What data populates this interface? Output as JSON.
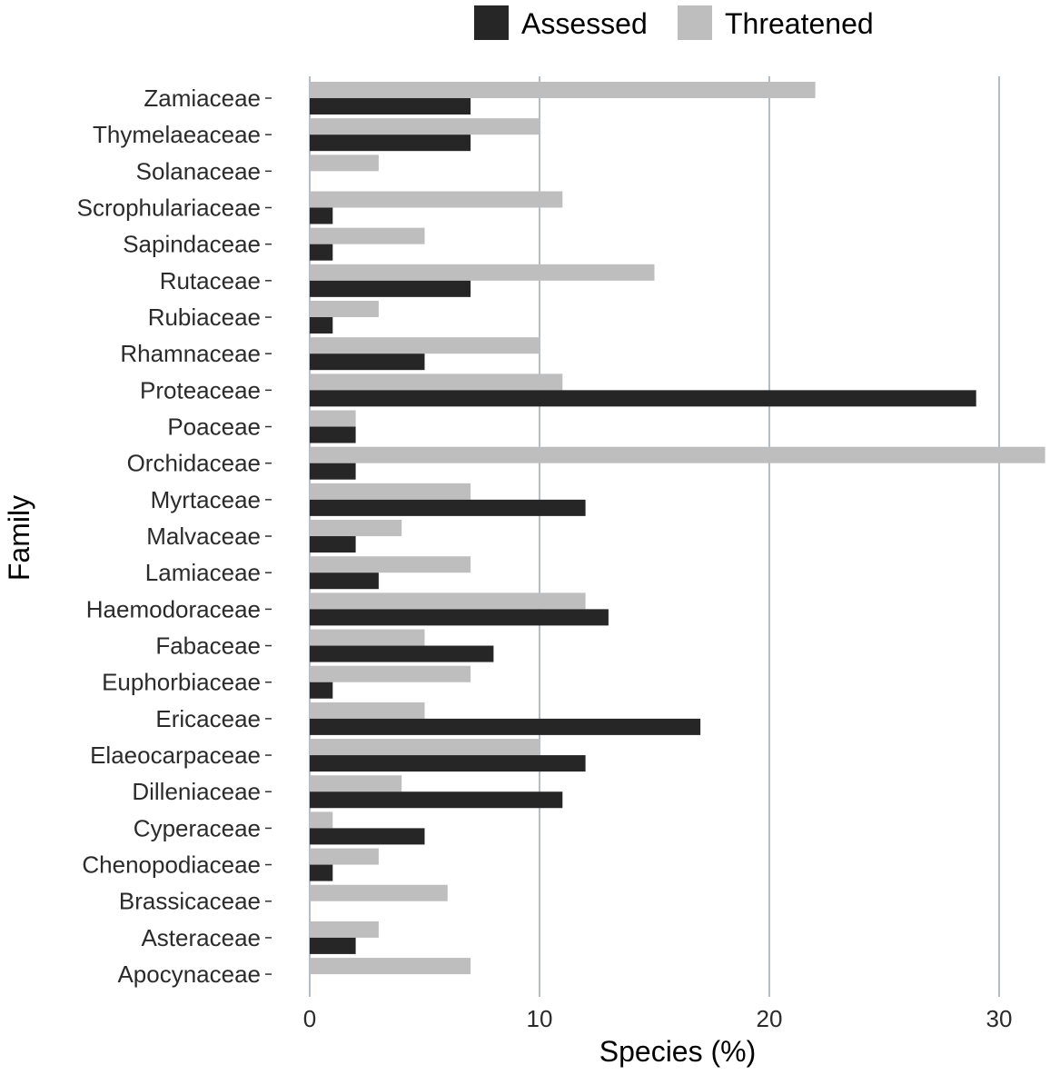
{
  "chart_data": {
    "type": "bar",
    "orientation": "horizontal",
    "xlabel": "Species (%)",
    "ylabel": "Family",
    "xlim": [
      0,
      32
    ],
    "xticks": [
      0,
      10,
      20,
      30
    ],
    "legend_position": "top",
    "categories": [
      "Zamiaceae",
      "Thymelaeaceae",
      "Solanaceae",
      "Scrophulariaceae",
      "Sapindaceae",
      "Rutaceae",
      "Rubiaceae",
      "Rhamnaceae",
      "Proteaceae",
      "Poaceae",
      "Orchidaceae",
      "Myrtaceae",
      "Malvaceae",
      "Lamiaceae",
      "Haemodoraceae",
      "Fabaceae",
      "Euphorbiaceae",
      "Ericaceae",
      "Elaeocarpaceae",
      "Dilleniaceae",
      "Cyperaceae",
      "Chenopodiaceae",
      "Brassicaceae",
      "Asteraceae",
      "Apocynaceae"
    ],
    "series": [
      {
        "name": "Assessed",
        "color": "#262626",
        "values": [
          7,
          7,
          0,
          1,
          1,
          7,
          1,
          5,
          29,
          2,
          2,
          12,
          2,
          3,
          13,
          8,
          1,
          17,
          12,
          11,
          5,
          1,
          0,
          2,
          0
        ]
      },
      {
        "name": "Threatened",
        "color": "#bebebe",
        "values": [
          22,
          10,
          3,
          11,
          5,
          15,
          3,
          10,
          11,
          2,
          32,
          7,
          4,
          7,
          12,
          5,
          7,
          5,
          10,
          4,
          1,
          3,
          6,
          3,
          7
        ]
      }
    ]
  }
}
